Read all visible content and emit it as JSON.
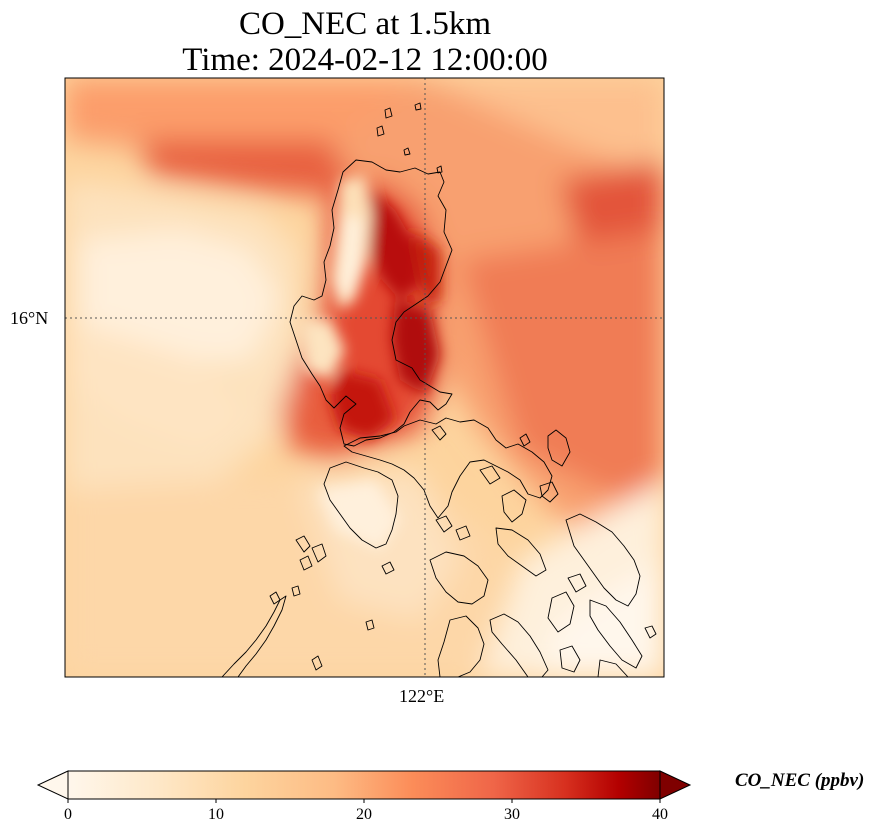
{
  "title": {
    "line1": "CO_NEC at 1.5km",
    "line2": "Time: 2024-02-12 12:00:00"
  },
  "map": {
    "lat_label": "16°N",
    "lon_label": "122°E",
    "gridlines": true
  },
  "colorbar": {
    "label": "CO_NEC (ppbv)",
    "ticks": [
      "0",
      "10",
      "20",
      "30",
      "40"
    ],
    "min": 0,
    "max": 40,
    "colormap": "OrRd",
    "extend": "both"
  },
  "colors": {
    "low": "#fff7ec",
    "mid_low": "#fdd49e",
    "mid": "#fc8d59",
    "high": "#d7301f",
    "max": "#7f0000"
  }
}
